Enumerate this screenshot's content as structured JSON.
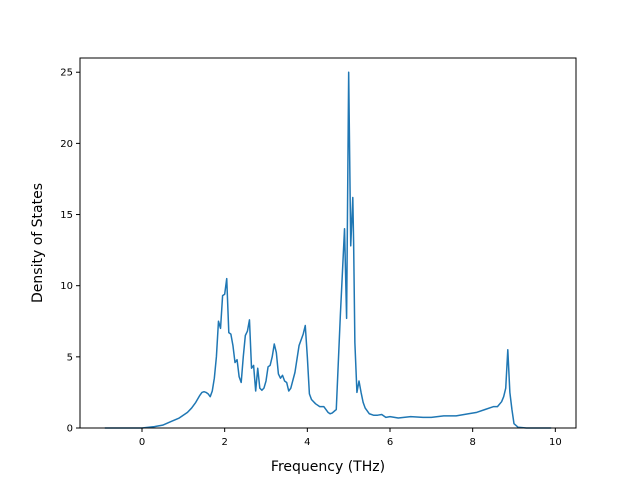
{
  "chart_data": {
    "type": "line",
    "title": "",
    "xlabel": "Frequency (THz)",
    "ylabel": "Density of States",
    "xlim": [
      -1.5,
      10.5
    ],
    "ylim": [
      0,
      26
    ],
    "xticks": [
      0,
      2,
      4,
      6,
      8,
      10
    ],
    "yticks": [
      0,
      5,
      10,
      15,
      20,
      25
    ],
    "grid": false,
    "legend": "none",
    "series": [
      {
        "color": "#1f77b4",
        "x": [
          -0.9,
          -0.5,
          0.0,
          0.3,
          0.5,
          0.7,
          0.9,
          1.1,
          1.2,
          1.3,
          1.4,
          1.45,
          1.5,
          1.55,
          1.6,
          1.65,
          1.7,
          1.75,
          1.8,
          1.85,
          1.9,
          1.95,
          2.0,
          2.05,
          2.1,
          2.15,
          2.2,
          2.25,
          2.3,
          2.35,
          2.4,
          2.45,
          2.5,
          2.55,
          2.6,
          2.65,
          2.7,
          2.75,
          2.8,
          2.85,
          2.9,
          2.95,
          3.0,
          3.05,
          3.1,
          3.15,
          3.2,
          3.25,
          3.3,
          3.35,
          3.4,
          3.45,
          3.5,
          3.55,
          3.6,
          3.7,
          3.8,
          3.9,
          3.95,
          4.0,
          4.05,
          4.1,
          4.2,
          4.3,
          4.4,
          4.5,
          4.55,
          4.6,
          4.7,
          4.8,
          4.85,
          4.9,
          4.95,
          5.0,
          5.05,
          5.1,
          5.12,
          5.15,
          5.2,
          5.25,
          5.3,
          5.35,
          5.4,
          5.5,
          5.6,
          5.7,
          5.8,
          5.9,
          6.0,
          6.2,
          6.5,
          6.8,
          7.0,
          7.3,
          7.6,
          7.9,
          8.1,
          8.3,
          8.5,
          8.6,
          8.7,
          8.75,
          8.8,
          8.85,
          8.9,
          8.95,
          9.0,
          9.1,
          9.3,
          9.6,
          9.9
        ],
        "y": [
          0.0,
          0.0,
          0.0,
          0.1,
          0.2,
          0.45,
          0.7,
          1.1,
          1.4,
          1.8,
          2.3,
          2.5,
          2.55,
          2.5,
          2.4,
          2.2,
          2.6,
          3.5,
          5.0,
          7.5,
          7.0,
          9.3,
          9.4,
          10.5,
          6.7,
          6.6,
          5.8,
          4.6,
          4.8,
          3.6,
          3.2,
          5.0,
          6.5,
          6.8,
          7.6,
          4.2,
          4.4,
          2.6,
          4.2,
          2.8,
          2.65,
          2.8,
          3.3,
          4.3,
          4.4,
          5.0,
          5.9,
          5.3,
          3.8,
          3.5,
          3.7,
          3.3,
          3.2,
          2.6,
          2.8,
          3.9,
          5.8,
          6.6,
          7.2,
          5.0,
          2.4,
          2.0,
          1.7,
          1.5,
          1.5,
          1.1,
          1.0,
          1.05,
          1.3,
          8.0,
          11.0,
          14.0,
          7.7,
          25.0,
          12.8,
          16.2,
          13.0,
          6.0,
          2.5,
          3.3,
          2.5,
          1.8,
          1.4,
          1.0,
          0.9,
          0.9,
          0.95,
          0.75,
          0.8,
          0.7,
          0.8,
          0.75,
          0.75,
          0.85,
          0.85,
          1.0,
          1.1,
          1.3,
          1.5,
          1.5,
          1.85,
          2.2,
          2.8,
          5.5,
          2.5,
          1.3,
          0.3,
          0.05,
          0.0,
          0.0,
          0.0
        ]
      }
    ]
  }
}
